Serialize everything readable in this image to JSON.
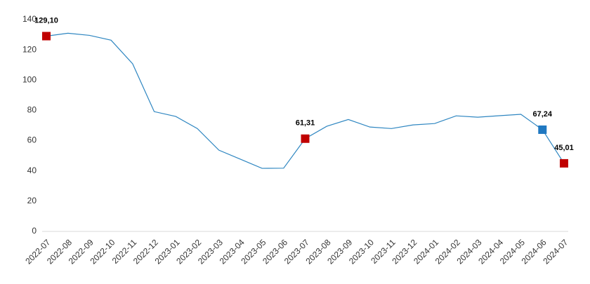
{
  "chart_data": {
    "type": "line",
    "categories": [
      "2022-07",
      "2022-08",
      "2022-09",
      "2022-10",
      "2022-11",
      "2022-12",
      "2023-01",
      "2023-02",
      "2023-03",
      "2023-04",
      "2023-05",
      "2023-06",
      "2023-07",
      "2023-08",
      "2023-09",
      "2023-10",
      "2023-11",
      "2023-12",
      "2024-01",
      "2024-02",
      "2024-03",
      "2024-04",
      "2024-05",
      "2024-06",
      "2024-07"
    ],
    "series": [
      {
        "color": "#2e86c1",
        "values": [
          129.1,
          131,
          129.6,
          126.4,
          110.8,
          79.2,
          76,
          68,
          53.7,
          47.7,
          41.7,
          41.8,
          61.31,
          69.5,
          74,
          69,
          68,
          70.4,
          71.3,
          76.4,
          75.5,
          76.5,
          77.4,
          67.24,
          45.01
        ],
        "value_labels": [
          "129,10",
          null,
          null,
          null,
          null,
          null,
          null,
          null,
          null,
          null,
          null,
          null,
          "61,31",
          null,
          null,
          null,
          null,
          null,
          null,
          null,
          null,
          null,
          null,
          "67,24",
          "45,01"
        ],
        "marker_colors": [
          "#c00000",
          null,
          null,
          null,
          null,
          null,
          null,
          null,
          null,
          null,
          null,
          null,
          "#c00000",
          null,
          null,
          null,
          null,
          null,
          null,
          null,
          null,
          null,
          null,
          "#1f78c1",
          "#c00000"
        ]
      }
    ],
    "ylim": [
      0,
      140
    ],
    "yticks": [
      0,
      20,
      40,
      60,
      80,
      100,
      120,
      140
    ],
    "grid": false
  }
}
